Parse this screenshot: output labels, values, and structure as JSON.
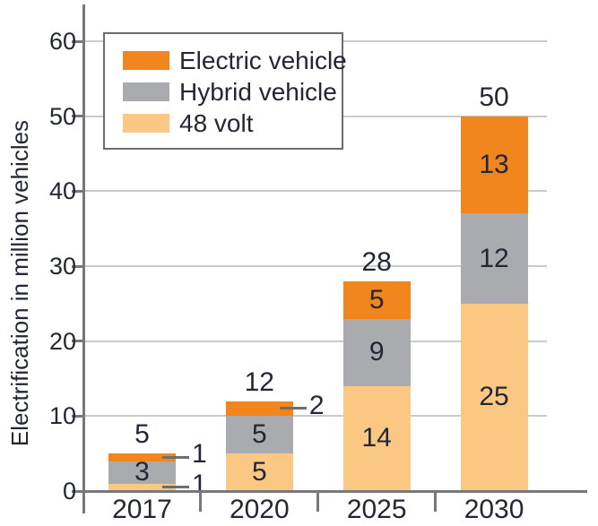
{
  "chart_data": {
    "type": "stacked_bar",
    "title": "",
    "ylabel": "Electrification in million vehicles",
    "xlabel": "",
    "ylim": [
      0,
      60
    ],
    "yticks": [
      0,
      10,
      20,
      30,
      40,
      50,
      60
    ],
    "grid": "horizontal",
    "categories": [
      "2017",
      "2020",
      "2025",
      "2030"
    ],
    "series": [
      {
        "name": "48 volt",
        "color": "#FBC884",
        "values": [
          1,
          5,
          14,
          25
        ]
      },
      {
        "name": "Hybrid vehicle",
        "color": "#A9ABAE",
        "values": [
          3,
          5,
          9,
          12
        ]
      },
      {
        "name": "Electric vehicle",
        "color": "#F1861E",
        "values": [
          1,
          2,
          5,
          13
        ]
      }
    ],
    "totals": [
      5,
      12,
      28,
      50
    ],
    "value_label_modes": [
      [
        "callout",
        "inside",
        "callout"
      ],
      [
        "inside",
        "inside",
        "callout"
      ],
      [
        "inside",
        "inside",
        "inside"
      ],
      [
        "inside",
        "inside",
        "inside"
      ]
    ],
    "legend": {
      "position": "top-left",
      "entries": [
        "Electric vehicle",
        "Hybrid vehicle",
        "48 volt"
      ]
    },
    "colors": {
      "axis": "#77787B",
      "grid": "#C9CACC",
      "text": "#232735",
      "callout": "#6D6E71",
      "legend_border": "#6A6C6F",
      "background": "#FFFFFF"
    }
  }
}
